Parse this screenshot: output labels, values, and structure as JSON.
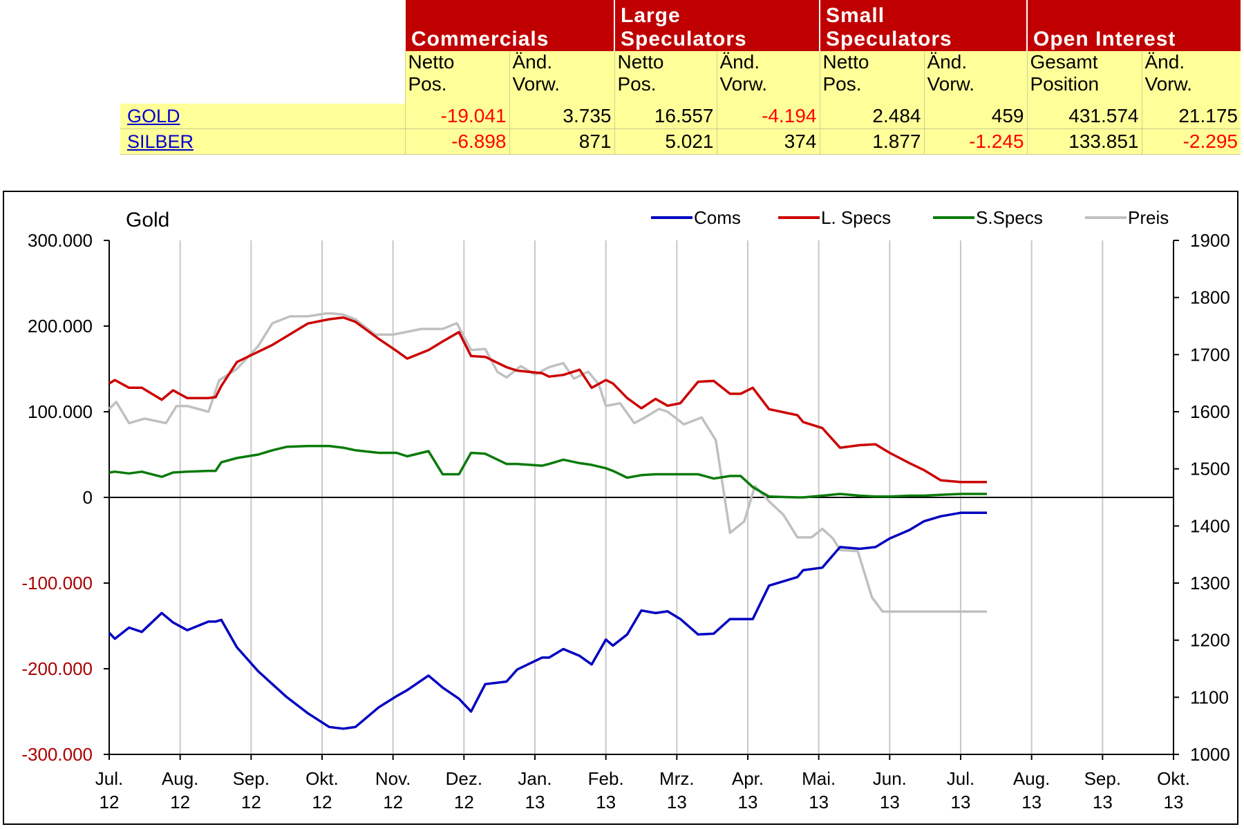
{
  "table": {
    "groups": [
      "Commercials",
      "Large\nSpeculators",
      "Small\nSpeculators",
      "Open  Interest"
    ],
    "subheaders": [
      "Netto\nPos.",
      "Änd.\nVorw.",
      "Netto\nPos.",
      "Änd.\nVorw.",
      "Netto\nPos.",
      "Änd.\nVorw.",
      "Gesamt\nPosition",
      "Änd.\nVorw."
    ],
    "rows": [
      {
        "label": "GOLD",
        "cells": [
          "-19.041",
          "3.735",
          "16.557",
          "-4.194",
          "2.484",
          "459",
          "431.574",
          "21.175"
        ]
      },
      {
        "label": "SILBER",
        "cells": [
          "-6.898",
          "871",
          "5.021",
          "374",
          "1.877",
          "-1.245",
          "133.851",
          "-2.295"
        ]
      }
    ]
  },
  "chart_data": {
    "type": "line",
    "title": "Gold",
    "legend_position": "top-right",
    "grid": true,
    "x_ticks": [
      [
        "Jul.",
        "12"
      ],
      [
        "Aug.",
        "12"
      ],
      [
        "Sep.",
        "12"
      ],
      [
        "Okt.",
        "12"
      ],
      [
        "Nov.",
        "12"
      ],
      [
        "Dez.",
        "12"
      ],
      [
        "Jan.",
        "13"
      ],
      [
        "Feb.",
        "13"
      ],
      [
        "Mrz.",
        "13"
      ],
      [
        "Apr.",
        "13"
      ],
      [
        "Mai.",
        "13"
      ],
      [
        "Jun.",
        "13"
      ],
      [
        "Jul.",
        "13"
      ],
      [
        "Aug.",
        "13"
      ],
      [
        "Sep.",
        "13"
      ],
      [
        "Okt.",
        "13"
      ]
    ],
    "x_range": [
      0,
      15
    ],
    "y_left": {
      "range": [
        -300000,
        300000
      ],
      "ticks": [
        300000,
        200000,
        100000,
        0,
        -100000,
        -200000,
        -300000
      ],
      "tick_labels": [
        "300.000",
        "200.000",
        "100.000",
        "0",
        "-100.000",
        "-200.000",
        "-300.000"
      ]
    },
    "y_right": {
      "range": [
        1000,
        1900
      ],
      "ticks": [
        1900,
        1800,
        1700,
        1600,
        1500,
        1400,
        1300,
        1200,
        1100,
        1000
      ],
      "tick_labels": [
        "1900",
        "1800",
        "1700",
        "1600",
        "1500",
        "1400",
        "1300",
        "1200",
        "1100",
        "1000"
      ]
    },
    "series": [
      {
        "name": "Coms",
        "color": "#0000c0",
        "axis": "left",
        "x": [
          0,
          0.08,
          0.28,
          0.46,
          0.74,
          0.9,
          1.1,
          1.4,
          1.5,
          1.58,
          1.8,
          2.1,
          2.3,
          2.5,
          2.8,
          3.1,
          3.3,
          3.47,
          3.8,
          4.05,
          4.2,
          4.5,
          4.7,
          4.93,
          5.1,
          5.3,
          5.6,
          5.75,
          6.1,
          6.2,
          6.4,
          6.63,
          6.8,
          7.0,
          7.1,
          7.3,
          7.5,
          7.7,
          7.87,
          8.05,
          8.3,
          8.52,
          8.75,
          8.9,
          9.07,
          9.3,
          9.7,
          9.78,
          10.05,
          10.3,
          10.58,
          10.8,
          11.0,
          11.28,
          11.48,
          11.72,
          12.0,
          12.2,
          12.37
        ],
        "y": [
          -158000,
          -165000,
          -152000,
          -157000,
          -135000,
          -146000,
          -155000,
          -145000,
          -145000,
          -143000,
          -175000,
          -203000,
          -218000,
          -233000,
          -252000,
          -268000,
          -270000,
          -268000,
          -245000,
          -232000,
          -225000,
          -208000,
          -222000,
          -235000,
          -250000,
          -218000,
          -215000,
          -201000,
          -187000,
          -187000,
          -177000,
          -185000,
          -195000,
          -166000,
          -173000,
          -160000,
          -132000,
          -135000,
          -133000,
          -142000,
          -160000,
          -159000,
          -142000,
          -142000,
          -142000,
          -103000,
          -93000,
          -85000,
          -82000,
          -58000,
          -60000,
          -58000,
          -48000,
          -38000,
          -28000,
          -22000,
          -18000,
          -18000,
          -18000
        ]
      },
      {
        "name": "L. Specs",
        "color": "#cc0000",
        "axis": "left",
        "x": [
          0,
          0.08,
          0.28,
          0.46,
          0.74,
          0.9,
          1.1,
          1.4,
          1.5,
          1.58,
          1.8,
          2.1,
          2.3,
          2.5,
          2.8,
          3.1,
          3.3,
          3.47,
          3.8,
          4.05,
          4.2,
          4.5,
          4.7,
          4.93,
          5.1,
          5.3,
          5.6,
          5.75,
          6.1,
          6.2,
          6.4,
          6.63,
          6.8,
          7.0,
          7.1,
          7.3,
          7.5,
          7.7,
          7.87,
          8.05,
          8.3,
          8.52,
          8.75,
          8.9,
          9.07,
          9.3,
          9.7,
          9.78,
          10.05,
          10.3,
          10.58,
          10.8,
          11.0,
          11.28,
          11.48,
          11.72,
          12.0,
          12.2,
          12.37
        ],
        "y": [
          133000,
          137000,
          128000,
          128000,
          114000,
          125000,
          116000,
          116000,
          117000,
          130000,
          158000,
          170000,
          178000,
          188000,
          203000,
          208000,
          210000,
          205000,
          185000,
          171000,
          162000,
          172000,
          182000,
          193000,
          165000,
          164000,
          152000,
          148000,
          145000,
          141000,
          143000,
          149000,
          128000,
          137000,
          133000,
          116000,
          104000,
          115000,
          107000,
          110000,
          135000,
          136000,
          121000,
          121000,
          128000,
          103000,
          96000,
          88000,
          81000,
          58000,
          61000,
          62000,
          52000,
          40000,
          32000,
          20000,
          18000,
          18000,
          18000
        ]
      },
      {
        "name": "S.Specs",
        "color": "#0a7a0a",
        "axis": "left",
        "x": [
          0,
          0.08,
          0.28,
          0.46,
          0.74,
          0.9,
          1.1,
          1.4,
          1.5,
          1.58,
          1.8,
          2.1,
          2.3,
          2.5,
          2.8,
          3.1,
          3.3,
          3.47,
          3.8,
          4.05,
          4.2,
          4.5,
          4.7,
          4.93,
          5.1,
          5.3,
          5.6,
          5.75,
          6.1,
          6.2,
          6.4,
          6.63,
          6.8,
          7.0,
          7.1,
          7.3,
          7.5,
          7.7,
          7.87,
          8.05,
          8.3,
          8.52,
          8.75,
          8.9,
          9.07,
          9.3,
          9.7,
          9.78,
          10.05,
          10.3,
          10.58,
          10.8,
          11.0,
          11.28,
          11.48,
          11.72,
          12.0,
          12.2,
          12.37
        ],
        "y": [
          29000,
          30000,
          28000,
          30000,
          24000,
          29000,
          30000,
          31000,
          31000,
          41000,
          46000,
          50000,
          55000,
          59000,
          60000,
          60000,
          58000,
          55000,
          52000,
          52000,
          48000,
          54000,
          27000,
          27000,
          52000,
          51000,
          39000,
          39000,
          37000,
          39000,
          44000,
          40000,
          38000,
          34000,
          31000,
          23000,
          26000,
          27000,
          27000,
          27000,
          27000,
          22000,
          25000,
          25000,
          12000,
          1000,
          0,
          0,
          2000,
          4000,
          2000,
          1000,
          1000,
          2000,
          2000,
          3000,
          4000,
          4000,
          4000
        ]
      },
      {
        "name": "Preis",
        "color": "#c0c0c0",
        "axis": "right",
        "x": [
          0,
          0.1,
          0.28,
          0.5,
          0.8,
          0.95,
          1.1,
          1.4,
          1.55,
          1.8,
          2.1,
          2.3,
          2.55,
          2.8,
          3.05,
          3.15,
          3.3,
          3.47,
          3.75,
          4.0,
          4.2,
          4.4,
          4.7,
          4.9,
          5.1,
          5.3,
          5.47,
          5.6,
          5.8,
          6.0,
          6.2,
          6.4,
          6.55,
          6.75,
          6.9,
          7.0,
          7.2,
          7.4,
          7.55,
          7.75,
          7.87,
          8.1,
          8.35,
          8.55,
          8.75,
          8.95,
          9.1,
          9.3,
          9.5,
          9.7,
          9.9,
          10.05,
          10.2,
          10.3,
          10.55,
          10.75,
          10.9,
          11.05,
          11.25,
          11.48,
          11.6,
          11.85,
          12.0,
          12.2,
          12.37
        ],
        "y": [
          1605,
          1617,
          1580,
          1588,
          1580,
          1610,
          1610,
          1600,
          1655,
          1675,
          1715,
          1755,
          1767,
          1767,
          1772,
          1772,
          1770,
          1762,
          1735,
          1735,
          1740,
          1745,
          1745,
          1755,
          1708,
          1710,
          1670,
          1660,
          1680,
          1665,
          1678,
          1685,
          1658,
          1670,
          1648,
          1610,
          1615,
          1580,
          1590,
          1605,
          1600,
          1578,
          1590,
          1550,
          1388,
          1408,
          1470,
          1443,
          1420,
          1380,
          1380,
          1395,
          1378,
          1358,
          1356,
          1275,
          1250,
          1250,
          1250,
          1250,
          1250,
          1250,
          1250,
          1250,
          1250
        ]
      }
    ]
  }
}
